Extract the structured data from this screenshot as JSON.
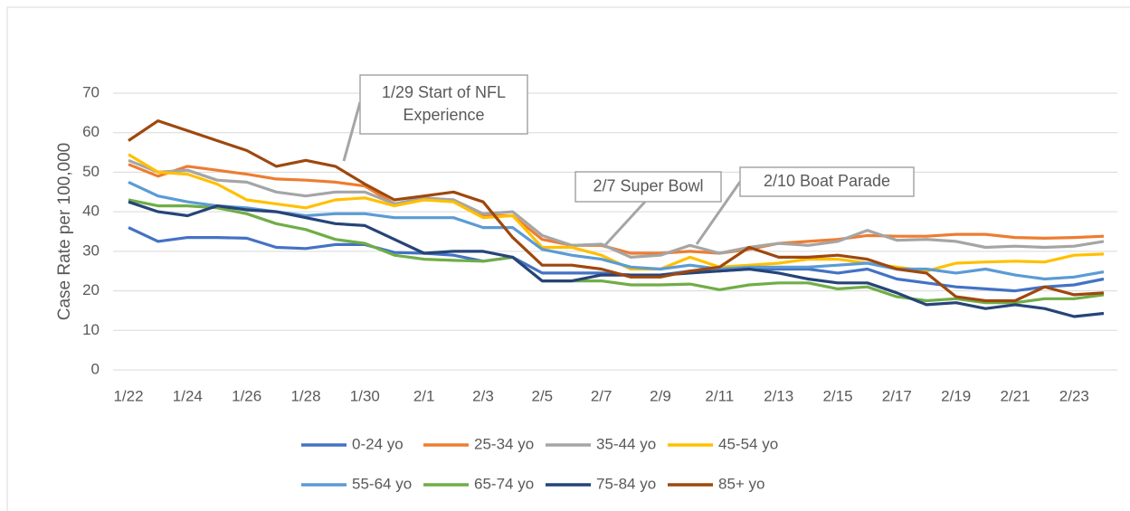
{
  "chart_data": {
    "type": "line",
    "y_label": "Case Rate per 100,000",
    "categories": [
      "1/22",
      null,
      "1/24",
      null,
      "1/26",
      null,
      "1/28",
      null,
      "1/30",
      null,
      "2/1",
      null,
      "2/3",
      null,
      "2/5",
      null,
      "2/7",
      null,
      "2/9",
      null,
      "2/11",
      null,
      "2/13",
      null,
      "2/15",
      null,
      "2/17",
      null,
      "2/19",
      null,
      "2/21",
      null,
      "2/23",
      null
    ],
    "ylim": [
      0,
      70
    ],
    "yticks": [
      0,
      10,
      20,
      30,
      40,
      50,
      60,
      70
    ],
    "grid": true,
    "legend": "bottom",
    "annotations": [
      {
        "lines": [
          "1/29 Start of NFL",
          "Experience"
        ]
      },
      {
        "lines": [
          "2/7 Super Bowl"
        ]
      },
      {
        "lines": [
          "2/10 Boat Parade"
        ]
      }
    ],
    "series": [
      {
        "name": "0-24 yo",
        "color": "#4472c4",
        "values": [
          36,
          32.5,
          33.5,
          33.5,
          33.3,
          31,
          30.7,
          31.7,
          31.7,
          29.7,
          29.5,
          29,
          27.5,
          28.5,
          24.5,
          24.5,
          24.5,
          24,
          24,
          25,
          25,
          25.5,
          25.5,
          25.5,
          24.5,
          25.5,
          23,
          22,
          21,
          20.5,
          20,
          21,
          21.5,
          23
        ]
      },
      {
        "name": "25-34 yo",
        "color": "#ed7d31",
        "values": [
          52,
          49,
          51.5,
          50.5,
          49.5,
          48.3,
          48,
          47.5,
          46.5,
          42,
          43,
          43,
          39,
          39,
          33,
          31.5,
          31.5,
          29.5,
          29.5,
          30,
          29.5,
          30.5,
          32,
          32.5,
          33,
          34,
          33.8,
          33.8,
          34.3,
          34.3,
          33.5,
          33.3,
          33.5,
          33.8
        ]
      },
      {
        "name": "35-44 yo",
        "color": "#a5a5a5",
        "values": [
          53,
          50,
          50.5,
          48,
          47.5,
          45,
          44,
          45,
          45,
          42,
          43.5,
          43,
          39.5,
          40,
          34,
          31.5,
          31.8,
          28.5,
          29,
          31.5,
          29.5,
          31,
          32,
          31.5,
          32.5,
          35.3,
          32.8,
          33,
          32.5,
          31,
          31.3,
          31,
          31.3,
          32.5
        ]
      },
      {
        "name": "45-54 yo",
        "color": "#ffc000",
        "values": [
          54.5,
          50,
          49.5,
          47,
          43,
          42,
          41,
          43,
          43.5,
          41.5,
          43,
          42.5,
          38.5,
          39,
          31,
          31,
          29,
          25.5,
          25.5,
          28.5,
          26,
          26.5,
          27,
          28,
          28,
          27,
          26,
          25,
          27,
          27.3,
          27.5,
          27.3,
          29,
          29.3
        ]
      },
      {
        "name": "55-64 yo",
        "color": "#5b9bd5",
        "values": [
          47.5,
          44,
          42.5,
          41.5,
          41,
          40,
          39,
          39.5,
          39.5,
          38.5,
          38.5,
          38.5,
          36,
          36,
          30.5,
          29,
          28,
          26,
          25.5,
          26.5,
          25.5,
          26,
          26,
          26,
          26.5,
          27,
          25.5,
          25.5,
          24.5,
          25.5,
          24,
          23,
          23.5,
          24.8
        ]
      },
      {
        "name": "65-74 yo",
        "color": "#70ad47",
        "values": [
          43,
          41.5,
          41.5,
          41,
          39.5,
          37,
          35.5,
          33,
          32,
          29,
          28,
          27.7,
          27.5,
          28.5,
          22.5,
          22.5,
          22.5,
          21.5,
          21.5,
          21.7,
          20.3,
          21.5,
          22,
          22,
          20.5,
          21,
          18.5,
          17.5,
          18,
          17,
          17,
          18,
          18,
          19
        ]
      },
      {
        "name": "75-84 yo",
        "color": "#264478",
        "values": [
          42.5,
          40,
          39,
          41.5,
          40.5,
          40,
          38.5,
          37,
          36.5,
          33,
          29.5,
          30,
          30,
          28.5,
          22.5,
          22.5,
          24,
          24,
          24,
          24.5,
          25,
          25.5,
          24.5,
          23,
          22,
          22,
          19.5,
          16.5,
          17,
          15.5,
          16.5,
          15.5,
          13.5,
          14.3
        ]
      },
      {
        "name": "85+ yo",
        "color": "#9e480e",
        "values": [
          58,
          63,
          60.5,
          58,
          55.5,
          51.5,
          53,
          51.5,
          47,
          43,
          44,
          45,
          42.5,
          33.5,
          26.5,
          26.5,
          25.5,
          23.5,
          23.5,
          25,
          26,
          31,
          28.5,
          28.5,
          29,
          28,
          25.5,
          24.5,
          18.5,
          17.5,
          17.5,
          21,
          19,
          19.5
        ]
      }
    ]
  }
}
